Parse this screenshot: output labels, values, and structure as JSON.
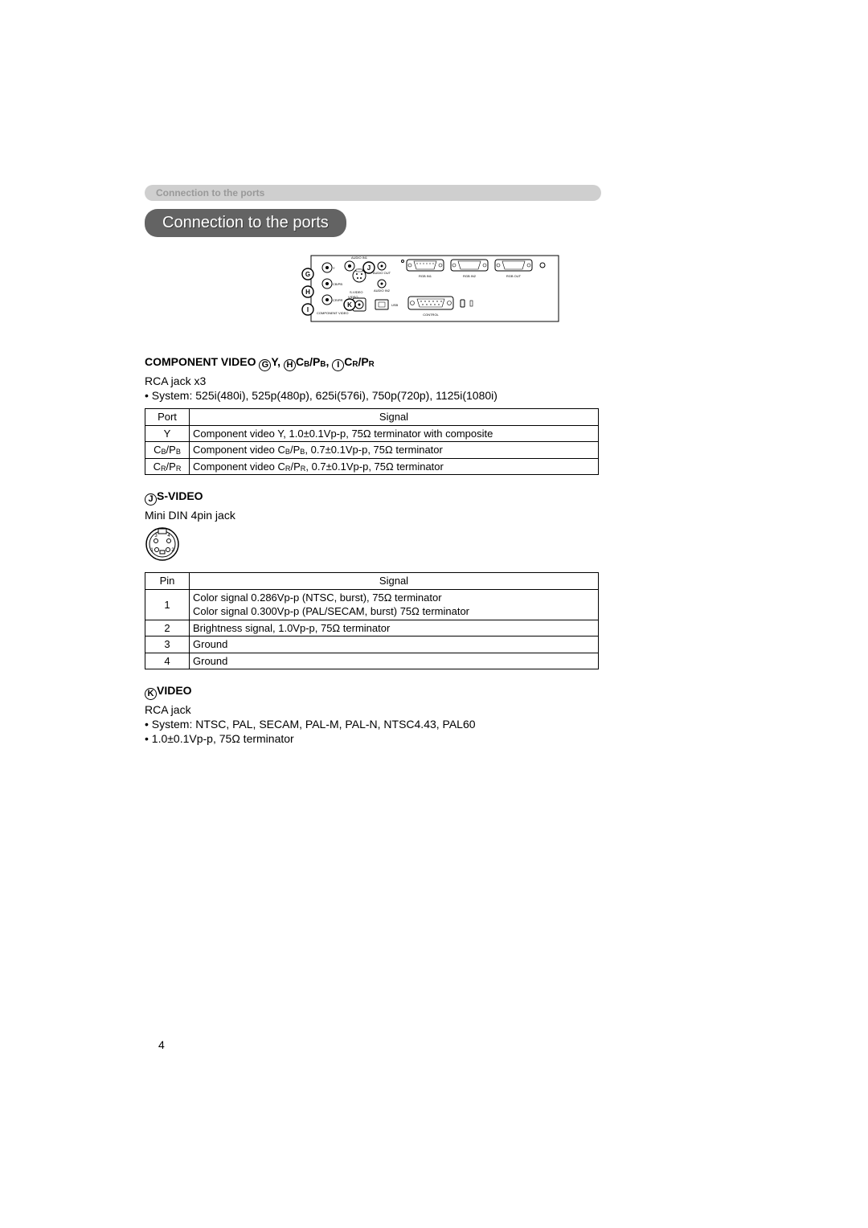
{
  "breadcrumb": "Connection to the ports",
  "title": "Connection to the ports",
  "diagram": {
    "panel_stroke": "#000000",
    "rca_label_y": "Y",
    "rca_label_cb": "CB/PB",
    "rca_label_cr": "CR/PR",
    "label_audio_in1": "AUDIO IN1",
    "label_audio_out": "AUDIO OUT",
    "label_audio_in2": "AUDIO IN2",
    "label_video": "VIDEO",
    "label_svideo": "S-VIDEO",
    "label_component": "COMPONENT VIDEO",
    "label_usb": "USB",
    "label_rgb_in1": "RGB IN1",
    "label_rgb_in2": "RGB IN2",
    "label_rgb_out": "RGB OUT",
    "label_control": "CONTROL",
    "badge_G": "G",
    "badge_H": "H",
    "badge_I": "I",
    "badge_J": "J",
    "badge_K": "K"
  },
  "component": {
    "heading_pre": "COMPONENT VIDEO ",
    "heading_g": "G",
    "heading_y": "Y, ",
    "heading_h": "H",
    "heading_cb": "C",
    "heading_cb_sub": "B",
    "heading_pb": "/P",
    "heading_pb_sub": "B",
    "heading_sep": ", ",
    "heading_i": "I",
    "heading_cr": "C",
    "heading_cr_sub": "R",
    "heading_pr": "/P",
    "heading_pr_sub": "R",
    "sub1": "RCA jack x3",
    "sub2": "• System: 525i(480i), 525p(480p), 625i(576i), 750p(720p), 1125i(1080i)",
    "th_port": "Port",
    "th_signal": "Signal",
    "rows": [
      {
        "port": "Y",
        "signal": "Component video Y, 1.0±0.1Vp-p, 75Ω terminator with composite"
      },
      {
        "port_html": "C<sub>B</sub>/P<sub>B</sub>",
        "signal_html": "Component video C<sub>B</sub>/P<sub>B</sub>, 0.7±0.1Vp-p, 75Ω terminator"
      },
      {
        "port_html": "C<sub>R</sub>/P<sub>R</sub>",
        "signal_html": "Component video C<sub>R</sub>/P<sub>R</sub>, 0.7±0.1Vp-p, 75Ω terminator"
      }
    ]
  },
  "svideo": {
    "badge": "J",
    "heading": "S-VIDEO",
    "sub1": "Mini DIN 4pin jack",
    "pin_labels": {
      "p1": "1",
      "p2": "2",
      "p3": "3",
      "p4": "4"
    },
    "th_pin": "Pin",
    "th_signal": "Signal",
    "rows": [
      {
        "pin": "1",
        "signal_html": "Color signal 0.286Vp-p (NTSC, burst), 75Ω terminator<br>Color signal 0.300Vp-p (PAL/SECAM, burst) 75Ω terminator"
      },
      {
        "pin": "2",
        "signal": "Brightness signal, 1.0Vp-p, 75Ω terminator"
      },
      {
        "pin": "3",
        "signal": "Ground"
      },
      {
        "pin": "4",
        "signal": "Ground"
      }
    ]
  },
  "video": {
    "badge": "K",
    "heading": "VIDEO",
    "sub1": "RCA jack",
    "sub2": "• System: NTSC, PAL, SECAM, PAL-M, PAL-N, NTSC4.43, PAL60",
    "sub3": "• 1.0±0.1Vp-p, 75Ω terminator"
  },
  "page_number": "4"
}
